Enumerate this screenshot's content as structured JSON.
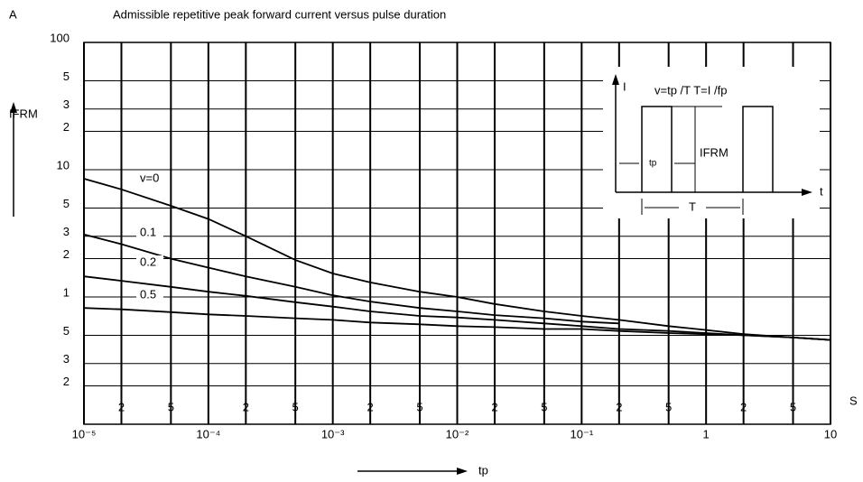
{
  "chart_data": {
    "type": "line",
    "title": "Admissible repetitive peak forward current versus pulse duration",
    "y_unit": "A",
    "x_unit": "S",
    "y_label": "IFRM",
    "x_label": "tp",
    "log_x": true,
    "log_y": true,
    "grid": true,
    "xlim": [
      1e-05,
      10
    ],
    "ylim": [
      0.1,
      100
    ],
    "xticks": [
      {
        "value": 1e-05,
        "label": "10⁻⁵"
      },
      {
        "value": 2e-05,
        "label": "2"
      },
      {
        "value": 5e-05,
        "label": "5"
      },
      {
        "value": 0.0001,
        "label": "10⁻⁴"
      },
      {
        "value": 0.0002,
        "label": "2"
      },
      {
        "value": 0.0005,
        "label": "5"
      },
      {
        "value": 0.001,
        "label": "10⁻³"
      },
      {
        "value": 0.002,
        "label": "2"
      },
      {
        "value": 0.005,
        "label": "5"
      },
      {
        "value": 0.01,
        "label": "10⁻²"
      },
      {
        "value": 0.02,
        "label": "2"
      },
      {
        "value": 0.05,
        "label": "5"
      },
      {
        "value": 0.1,
        "label": "10⁻¹"
      },
      {
        "value": 0.2,
        "label": "2"
      },
      {
        "value": 0.5,
        "label": "5"
      },
      1,
      2,
      5,
      10
    ],
    "yticks": [
      100,
      {
        "value": 50,
        "label": "5"
      },
      {
        "value": 30,
        "label": "3"
      },
      {
        "value": 20,
        "label": "2"
      },
      10,
      5,
      3,
      2,
      1,
      {
        "value": 0.5,
        "label": "5"
      },
      {
        "value": 0.3,
        "label": "3"
      },
      {
        "value": 0.2,
        "label": "2"
      }
    ],
    "x": [
      1e-05,
      2e-05,
      5e-05,
      0.0001,
      0.0002,
      0.0005,
      0.001,
      0.002,
      0.005,
      0.01,
      0.02,
      0.05,
      0.1,
      0.2,
      0.5,
      1,
      2,
      5,
      10
    ],
    "series": [
      {
        "name": "v=0",
        "color": "#000000",
        "values": [
          8.5,
          7.0,
          5.2,
          4.1,
          3.0,
          1.95,
          1.53,
          1.3,
          1.1,
          1.0,
          0.88,
          0.77,
          0.71,
          0.66,
          0.59,
          0.55,
          0.51,
          0.48,
          0.46
        ]
      },
      {
        "name": "0.1",
        "color": "#000000",
        "values": [
          3.1,
          2.6,
          2.0,
          1.7,
          1.45,
          1.2,
          1.03,
          0.92,
          0.82,
          0.77,
          0.72,
          0.68,
          0.64,
          0.62,
          null,
          null,
          null,
          null,
          null
        ]
      },
      {
        "name": "0.2",
        "color": "#000000",
        "values": [
          1.45,
          1.34,
          1.2,
          1.1,
          1.02,
          0.91,
          0.84,
          0.77,
          0.71,
          0.69,
          0.66,
          0.62,
          0.59,
          0.56,
          0.54,
          0.52,
          0.5,
          0.48,
          0.46
        ]
      },
      {
        "name": "0.5",
        "color": "#000000",
        "values": [
          0.82,
          0.8,
          0.76,
          0.73,
          0.71,
          0.68,
          0.66,
          0.63,
          0.61,
          0.59,
          0.58,
          0.56,
          0.56,
          0.54,
          0.52,
          0.51,
          0.5,
          0.48,
          0.46
        ]
      }
    ],
    "inset": {
      "i_label": "I",
      "t_label": "t",
      "formula": "v=tp /T T=I /fp",
      "tp_label": "tp",
      "ifrm_label": "IFRM",
      "period_label": "T"
    }
  }
}
